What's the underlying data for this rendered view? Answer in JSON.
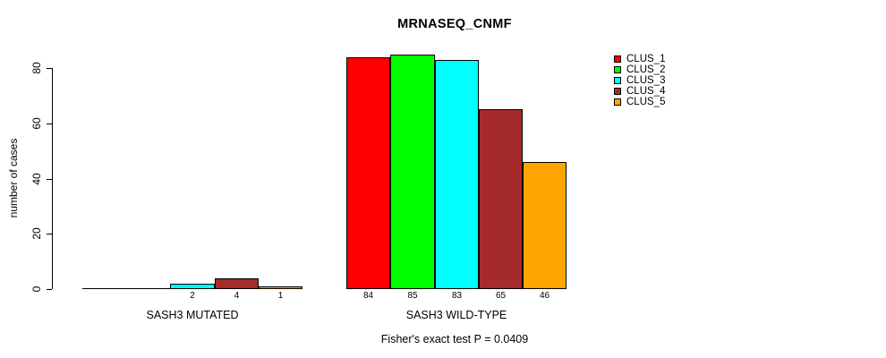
{
  "chart_data": {
    "type": "bar",
    "title": "MRNASEQ_CNMF",
    "ylabel": "number of cases",
    "xlabel": "",
    "ylim": [
      0,
      80
    ],
    "yticks": [
      0,
      20,
      40,
      60,
      80
    ],
    "grid": false,
    "legend_position": "right",
    "categories": [
      "SASH3 MUTATED",
      "SASH3 WILD-TYPE"
    ],
    "series": [
      {
        "name": "CLUS_1",
        "color": "#FF0000",
        "values": [
          0,
          84
        ]
      },
      {
        "name": "CLUS_2",
        "color": "#00FF00",
        "values": [
          0,
          85
        ]
      },
      {
        "name": "CLUS_3",
        "color": "#00FFFF",
        "values": [
          2,
          83
        ]
      },
      {
        "name": "CLUS_4",
        "color": "#A52A2A",
        "values": [
          4,
          65
        ]
      },
      {
        "name": "CLUS_5",
        "color": "#FFA500",
        "values": [
          1,
          46
        ]
      }
    ],
    "bar_label_rule": "values shown under each bar; zero-value bars unlabeled",
    "annotation": "Fisher's exact test P = 0.0409"
  }
}
